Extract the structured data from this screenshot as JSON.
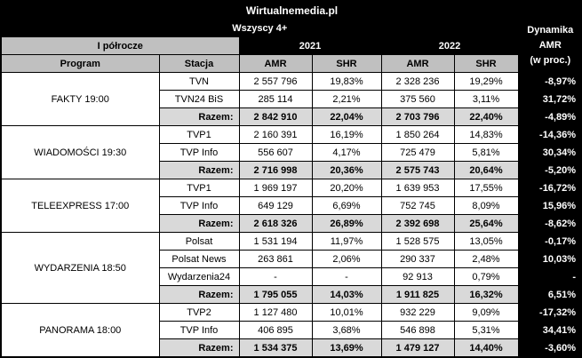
{
  "header": {
    "title": "Wirtualnemedia.pl",
    "demographic": "Wszyscy 4+",
    "period": "I półrocze",
    "years": [
      "2021",
      "2022"
    ],
    "col_program": "Program",
    "col_station": "Stacja",
    "col_amr": "AMR",
    "col_shr": "SHR",
    "dynamics_lines": [
      "Dynamika",
      "AMR",
      "(w proc.)"
    ]
  },
  "chart_data": {
    "type": "table",
    "title": "Wirtualnemedia.pl",
    "demographic": "Wszyscy 4+",
    "period": "I półrocze",
    "columns": [
      "Program",
      "Stacja",
      "AMR 2021",
      "SHR 2021",
      "AMR 2022",
      "SHR 2022",
      "Dynamika AMR (w proc.)"
    ],
    "groups": [
      {
        "program": "FAKTY 19:00",
        "rows": [
          {
            "station": "TVN",
            "amr2021": "2 557 796",
            "shr2021": "19,83%",
            "amr2022": "2 328 236",
            "shr2022": "19,29%",
            "dyn": "-8,97%"
          },
          {
            "station": "TVN24 BiS",
            "amr2021": "285 114",
            "shr2021": "2,21%",
            "amr2022": "375 560",
            "shr2022": "3,11%",
            "dyn": "31,72%"
          },
          {
            "station": "Razem:",
            "total": true,
            "amr2021": "2 842 910",
            "shr2021": "22,04%",
            "amr2022": "2 703 796",
            "shr2022": "22,40%",
            "dyn": "-4,89%"
          }
        ]
      },
      {
        "program": "WIADOMOŚCI 19:30",
        "rows": [
          {
            "station": "TVP1",
            "amr2021": "2 160 391",
            "shr2021": "16,19%",
            "amr2022": "1 850 264",
            "shr2022": "14,83%",
            "dyn": "-14,36%"
          },
          {
            "station": "TVP Info",
            "amr2021": "556 607",
            "shr2021": "4,17%",
            "amr2022": "725 479",
            "shr2022": "5,81%",
            "dyn": "30,34%"
          },
          {
            "station": "Razem:",
            "total": true,
            "amr2021": "2 716 998",
            "shr2021": "20,36%",
            "amr2022": "2 575 743",
            "shr2022": "20,64%",
            "dyn": "-5,20%"
          }
        ]
      },
      {
        "program": "TELEEXPRESS 17:00",
        "rows": [
          {
            "station": "TVP1",
            "amr2021": "1 969 197",
            "shr2021": "20,20%",
            "amr2022": "1 639 953",
            "shr2022": "17,55%",
            "dyn": "-16,72%"
          },
          {
            "station": "TVP Info",
            "amr2021": "649 129",
            "shr2021": "6,69%",
            "amr2022": "752 745",
            "shr2022": "8,09%",
            "dyn": "15,96%"
          },
          {
            "station": "Razem:",
            "total": true,
            "amr2021": "2 618 326",
            "shr2021": "26,89%",
            "amr2022": "2 392 698",
            "shr2022": "25,64%",
            "dyn": "-8,62%"
          }
        ]
      },
      {
        "program": "WYDARZENIA 18:50",
        "rows": [
          {
            "station": "Polsat",
            "amr2021": "1 531 194",
            "shr2021": "11,97%",
            "amr2022": "1 528 575",
            "shr2022": "13,05%",
            "dyn": "-0,17%"
          },
          {
            "station": "Polsat News",
            "amr2021": "263 861",
            "shr2021": "2,06%",
            "amr2022": "290 337",
            "shr2022": "2,48%",
            "dyn": "10,03%"
          },
          {
            "station": "Wydarzenia24",
            "amr2021": "-",
            "shr2021": "-",
            "amr2022": "92 913",
            "shr2022": "0,79%",
            "dyn": "-"
          },
          {
            "station": "Razem:",
            "total": true,
            "amr2021": "1 795 055",
            "shr2021": "14,03%",
            "amr2022": "1 911 825",
            "shr2022": "16,32%",
            "dyn": "6,51%"
          }
        ]
      },
      {
        "program": "PANORAMA 18:00",
        "rows": [
          {
            "station": "TVP2",
            "amr2021": "1 127 480",
            "shr2021": "10,01%",
            "amr2022": "932 229",
            "shr2022": "9,09%",
            "dyn": "-17,32%"
          },
          {
            "station": "TVP Info",
            "amr2021": "406 895",
            "shr2021": "3,68%",
            "amr2022": "546 898",
            "shr2022": "5,31%",
            "dyn": "34,41%"
          },
          {
            "station": "Razem:",
            "total": true,
            "amr2021": "1 534 375",
            "shr2021": "13,69%",
            "amr2022": "1 479 127",
            "shr2022": "14,40%",
            "dyn": "-3,60%"
          }
        ]
      }
    ]
  }
}
